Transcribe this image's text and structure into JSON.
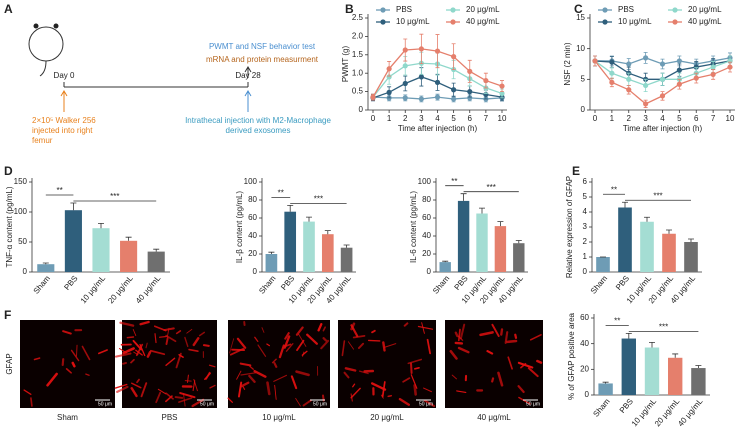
{
  "panel_labels": [
    "A",
    "B",
    "C",
    "D",
    "E",
    "F"
  ],
  "schematic": {
    "day0": "Day 0",
    "day28": "Day 28",
    "top_lines": [
      "PWMT and NSF behavior test",
      "mRNA and protein measurment"
    ],
    "left_lines": [
      "2×10⁵ Walker 256",
      "injected into right",
      "femur"
    ],
    "right_lines": [
      "Intrathecal injection with M2-Macrophage",
      "derived exosomes"
    ]
  },
  "chart_data": [
    {
      "type": "line",
      "ylabel": "PWMT (g)",
      "xlabel": "Time after injection (h)",
      "categories": [
        "0",
        "1",
        "2",
        "3",
        "4",
        "5",
        "6",
        "7",
        "10"
      ],
      "ylim": [
        0,
        2.5
      ],
      "yticks": [
        0,
        0.5,
        {
          "value": 1,
          "label": "1.0"
        },
        1.5,
        {
          "value": 2,
          "label": "2.0"
        },
        2.5
      ],
      "legend": "top",
      "series": [
        {
          "name": "PBS",
          "color": "#6e9cb5",
          "values": [
            0.35,
            0.33,
            0.33,
            0.3,
            0.35,
            0.3,
            0.33,
            0.3,
            0.33
          ],
          "errors": [
            0.08,
            0.08,
            0.08,
            0.08,
            0.08,
            0.08,
            0.08,
            0.08,
            0.08
          ]
        },
        {
          "name": "10 μg/mL",
          "color": "#2f5f7c",
          "values": [
            0.33,
            0.48,
            0.72,
            0.9,
            0.75,
            0.55,
            0.5,
            0.42,
            0.35
          ],
          "errors": [
            0.08,
            0.15,
            0.2,
            0.25,
            0.22,
            0.18,
            0.15,
            0.12,
            0.1
          ]
        },
        {
          "name": "20 μg/mL",
          "color": "#8fd8cb",
          "values": [
            0.35,
            0.9,
            1.2,
            1.27,
            1.25,
            1.1,
            0.85,
            0.6,
            0.45
          ],
          "errors": [
            0.08,
            0.2,
            0.25,
            0.3,
            0.3,
            0.25,
            0.2,
            0.15,
            0.12
          ]
        },
        {
          "name": "40 μg/mL",
          "color": "#e57f6c",
          "values": [
            0.35,
            1.12,
            1.63,
            1.66,
            1.6,
            1.45,
            1.05,
            0.8,
            0.65
          ],
          "errors": [
            0.08,
            0.2,
            0.3,
            0.4,
            0.45,
            0.35,
            0.3,
            0.2,
            0.15
          ]
        }
      ]
    },
    {
      "type": "line",
      "ylabel": "NSF (2 min)",
      "xlabel": "Time after injection (h)",
      "categories": [
        "0",
        "1",
        "2",
        "3",
        "4",
        "5",
        "6",
        "7",
        "10"
      ],
      "ylim": [
        0,
        15
      ],
      "yticks": [
        0,
        5,
        10,
        15
      ],
      "legend": "top",
      "series": [
        {
          "name": "PBS",
          "color": "#6e9cb5",
          "values": [
            8,
            8,
            7.5,
            8.5,
            7.5,
            8,
            7.5,
            8,
            8.5
          ],
          "errors": [
            0.8,
            0.8,
            0.9,
            0.9,
            0.8,
            0.8,
            0.8,
            0.8,
            0.8
          ]
        },
        {
          "name": "10 μg/mL",
          "color": "#2f5f7c",
          "values": [
            8,
            7.8,
            6,
            5,
            5,
            6.5,
            7,
            7.5,
            8
          ],
          "errors": [
            0.8,
            0.9,
            1,
            1,
            1,
            1,
            0.9,
            0.9,
            0.8
          ]
        },
        {
          "name": "20 μg/mL",
          "color": "#8fd8cb",
          "values": [
            8,
            6,
            5,
            4,
            5,
            5,
            6,
            7,
            8
          ],
          "errors": [
            0.8,
            0.9,
            1,
            1,
            1,
            1,
            0.9,
            0.9,
            0.8
          ]
        },
        {
          "name": "40 μg/mL",
          "color": "#e57f6c",
          "values": [
            8,
            4.5,
            3.3,
            1,
            2.3,
            4.2,
            5.2,
            5.8,
            7
          ],
          "errors": [
            0.8,
            0.7,
            0.7,
            0.6,
            0.7,
            0.8,
            0.8,
            0.8,
            0.8
          ]
        }
      ]
    },
    {
      "type": "bar",
      "ylabel": "TNF-α content (pg/mL)",
      "categories": [
        "Sham",
        "PBS",
        "10 μg/mL",
        "20 μg/mL",
        "40 μg/mL"
      ],
      "colors": [
        "#6e9cb5",
        "#2f5f7c",
        "#a4ddd3",
        "#e57f6c",
        "#6f6f6f"
      ],
      "values": [
        13,
        103,
        73,
        52,
        34
      ],
      "errors": [
        2,
        12,
        8,
        6,
        4
      ],
      "ylim": [
        0,
        150
      ],
      "yticks": [
        0,
        50,
        100,
        150
      ],
      "significance": [
        "**",
        "***"
      ]
    },
    {
      "type": "bar",
      "ylabel": "IL-β content (pg/mL)",
      "categories": [
        "Sham",
        "PBS",
        "10 μg/mL",
        "20 μg/mL",
        "40 μg/mL"
      ],
      "colors": [
        "#6e9cb5",
        "#2f5f7c",
        "#a4ddd3",
        "#e57f6c",
        "#6f6f6f"
      ],
      "values": [
        20,
        67,
        56,
        42,
        27
      ],
      "errors": [
        2,
        7,
        5,
        4,
        3
      ],
      "ylim": [
        0,
        100
      ],
      "yticks": [
        0,
        20,
        40,
        60,
        80,
        100
      ],
      "significance": [
        "**",
        "***"
      ]
    },
    {
      "type": "bar",
      "ylabel": "IL-6 content (pg/mL)",
      "categories": [
        "Sham",
        "PBS",
        "10 μg/mL",
        "20 μg/mL",
        "40 μg/mL"
      ],
      "colors": [
        "#6e9cb5",
        "#2f5f7c",
        "#a4ddd3",
        "#e57f6c",
        "#6f6f6f"
      ],
      "values": [
        11,
        79,
        65,
        51,
        32
      ],
      "errors": [
        1,
        8,
        6,
        5,
        3
      ],
      "ylim": [
        0,
        100
      ],
      "yticks": [
        0,
        20,
        40,
        60,
        80,
        100
      ],
      "significance": [
        "**",
        "***"
      ]
    },
    {
      "type": "bar",
      "ylabel": "Relative expression of GFAP",
      "categories": [
        "Sham",
        "PBS",
        "10 μg/mL",
        "20 μg/mL",
        "40 μg/mL"
      ],
      "colors": [
        "#6e9cb5",
        "#2f5f7c",
        "#a4ddd3",
        "#e57f6c",
        "#6f6f6f"
      ],
      "values": [
        1,
        4.3,
        3.35,
        2.55,
        2
      ],
      "errors": [
        0,
        0.35,
        0.3,
        0.25,
        0.2
      ],
      "ylim": [
        0,
        6
      ],
      "yticks": [
        0,
        1,
        2,
        3,
        4,
        5,
        6
      ],
      "significance": [
        "**",
        "***"
      ]
    },
    {
      "type": "bar",
      "ylabel": "% of GFAP positive area",
      "categories": [
        "Sham",
        "PBS",
        "10 μg/mL",
        "20 μg/mL",
        "40 μg/mL"
      ],
      "colors": [
        "#6e9cb5",
        "#2f5f7c",
        "#a4ddd3",
        "#e57f6c",
        "#6f6f6f"
      ],
      "values": [
        9,
        44,
        37,
        29,
        21
      ],
      "errors": [
        1,
        4,
        4,
        3,
        2
      ],
      "ylim": [
        0,
        60
      ],
      "yticks": [
        0,
        20,
        40,
        60
      ],
      "significance": [
        "**",
        "***"
      ]
    }
  ],
  "images": {
    "ylabel": "GFAP",
    "labels": [
      "Sham",
      "PBS",
      "10 μg/mL",
      "20 μg/mL",
      "40 μg/mL"
    ],
    "scale_bar": "50 μm"
  }
}
